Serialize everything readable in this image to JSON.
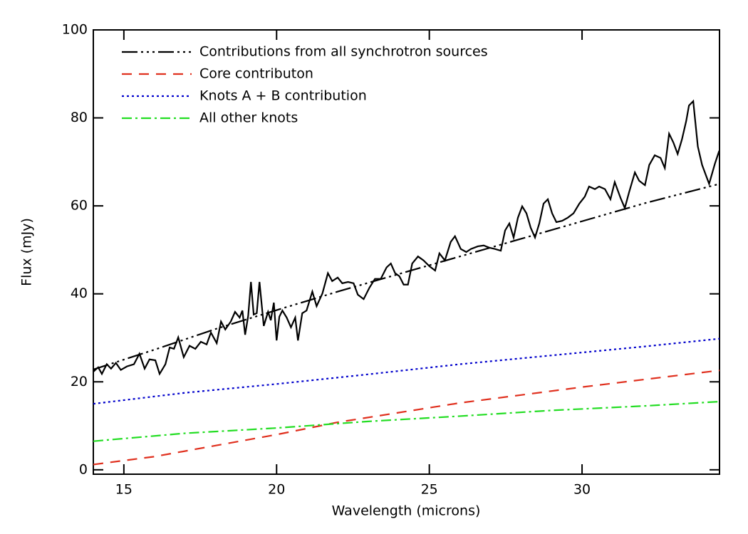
{
  "chart_data": {
    "type": "line",
    "xlabel": "Wavelength (microns)",
    "ylabel": "Flux (mJy)",
    "xlim": [
      14,
      34.5
    ],
    "ylim": [
      -1,
      100
    ],
    "xticks": [
      15,
      20,
      25,
      30
    ],
    "yticks": [
      0,
      20,
      40,
      60,
      80,
      100
    ],
    "legend": "upper-left",
    "series": [
      {
        "color": "#000000",
        "linestyle": "solid",
        "x": [
          14.0,
          14.16,
          14.28,
          14.44,
          14.58,
          14.74,
          14.9,
          15.1,
          15.33,
          15.51,
          15.68,
          15.84,
          16.03,
          16.17,
          16.36,
          16.5,
          16.64,
          16.78,
          16.96,
          17.15,
          17.34,
          17.52,
          17.71,
          17.85,
          18.04,
          18.18,
          18.32,
          18.5,
          18.64,
          18.79,
          18.88,
          18.97,
          19.07,
          19.16,
          19.25,
          19.35,
          19.44,
          19.58,
          19.72,
          19.81,
          19.91,
          20.0,
          20.09,
          20.19,
          20.33,
          20.47,
          20.61,
          20.7,
          20.84,
          20.98,
          21.17,
          21.31,
          21.5,
          21.68,
          21.82,
          22.0,
          22.15,
          22.34,
          22.52,
          22.66,
          22.85,
          23.04,
          23.22,
          23.41,
          23.6,
          23.74,
          23.88,
          24.02,
          24.16,
          24.3,
          24.44,
          24.63,
          24.81,
          25.0,
          25.19,
          25.33,
          25.51,
          25.7,
          25.84,
          26.03,
          26.21,
          26.36,
          26.59,
          26.78,
          26.96,
          27.15,
          27.34,
          27.48,
          27.62,
          27.76,
          27.9,
          28.04,
          28.18,
          28.32,
          28.46,
          28.6,
          28.74,
          28.88,
          29.02,
          29.16,
          29.35,
          29.53,
          29.72,
          29.91,
          30.09,
          30.23,
          30.42,
          30.56,
          30.75,
          30.93,
          31.07,
          31.26,
          31.4,
          31.54,
          31.73,
          31.87,
          32.06,
          32.2,
          32.38,
          32.57,
          32.71,
          32.85,
          32.99,
          33.13,
          33.27,
          33.41,
          33.5,
          33.64,
          33.79,
          33.93,
          34.16,
          34.35,
          34.49
        ],
        "values": [
          22.3,
          23.3,
          21.8,
          24,
          23,
          24.3,
          22.7,
          23.5,
          24,
          26.4,
          23,
          25.1,
          24.9,
          21.8,
          24,
          27.8,
          27.5,
          30.1,
          25.6,
          28.2,
          27.5,
          29.1,
          28.5,
          31.2,
          28.8,
          33.7,
          31.9,
          33.7,
          35.9,
          34.6,
          36.2,
          30.7,
          35,
          42.7,
          35.3,
          35.6,
          42.7,
          32.7,
          35.9,
          34,
          38,
          29.4,
          34.8,
          36.2,
          34.6,
          32.4,
          34.6,
          29.4,
          35.6,
          36.2,
          40.5,
          37.2,
          40.1,
          44.7,
          42.9,
          43.7,
          42.4,
          42.7,
          42.4,
          39.8,
          38.8,
          41.4,
          43.4,
          43.4,
          46,
          46.9,
          44.7,
          44,
          42.1,
          42.1,
          46.9,
          48.5,
          47.6,
          46.3,
          45.3,
          49.2,
          47.6,
          51.8,
          53.1,
          50.2,
          49.5,
          50.2,
          50.8,
          51,
          50.5,
          50.2,
          49.8,
          54.4,
          56,
          52.8,
          57.3,
          59.9,
          58.3,
          55,
          52.8,
          56,
          60.5,
          61.5,
          58.3,
          56.3,
          56.6,
          57.3,
          58.3,
          60.5,
          62.1,
          64.4,
          63.8,
          64.4,
          63.8,
          61.5,
          65.4,
          61.8,
          59.5,
          63.1,
          67.6,
          65.7,
          64.7,
          69.3,
          71.5,
          70.9,
          68.6,
          76.4,
          74.4,
          71.8,
          75.1,
          79.3,
          82.8,
          83.8,
          73.5,
          69.3,
          65,
          69.6,
          72.5
        ]
      },
      {
        "name": "Contributions from all synchrotron sources",
        "color": "#000000",
        "linestyle": "dash-dot-dot-dot",
        "x": [
          14,
          16,
          18,
          20,
          22,
          24,
          26,
          28,
          30,
          32,
          34.5
        ],
        "values": [
          22.8,
          27.3,
          32,
          36.3,
          40.5,
          44.5,
          48.5,
          52.5,
          56.5,
          60.5,
          65
        ]
      },
      {
        "name": "Core contributon",
        "color": "#e0301e",
        "linestyle": "dashed",
        "x": [
          14,
          16,
          18,
          20,
          22,
          24,
          26,
          28,
          30,
          32,
          34.5
        ],
        "values": [
          1.2,
          3,
          5.5,
          8,
          10.8,
          13,
          15.2,
          17,
          18.8,
          20.5,
          22.6
        ]
      },
      {
        "name": "Knots A + B contribution",
        "color": "#0000cc",
        "linestyle": "dotted",
        "x": [
          14,
          17,
          20,
          23,
          26,
          29,
          32,
          34.5
        ],
        "values": [
          15,
          17.5,
          19.5,
          21.7,
          24,
          26,
          28,
          29.8
        ]
      },
      {
        "name": "All other knots",
        "color": "#22dd22",
        "linestyle": "dash-dot",
        "x": [
          14,
          17,
          20,
          23,
          26,
          29,
          32,
          34.5
        ],
        "values": [
          6.5,
          8.3,
          9.5,
          11,
          12.2,
          13.5,
          14.5,
          15.5
        ]
      }
    ]
  }
}
